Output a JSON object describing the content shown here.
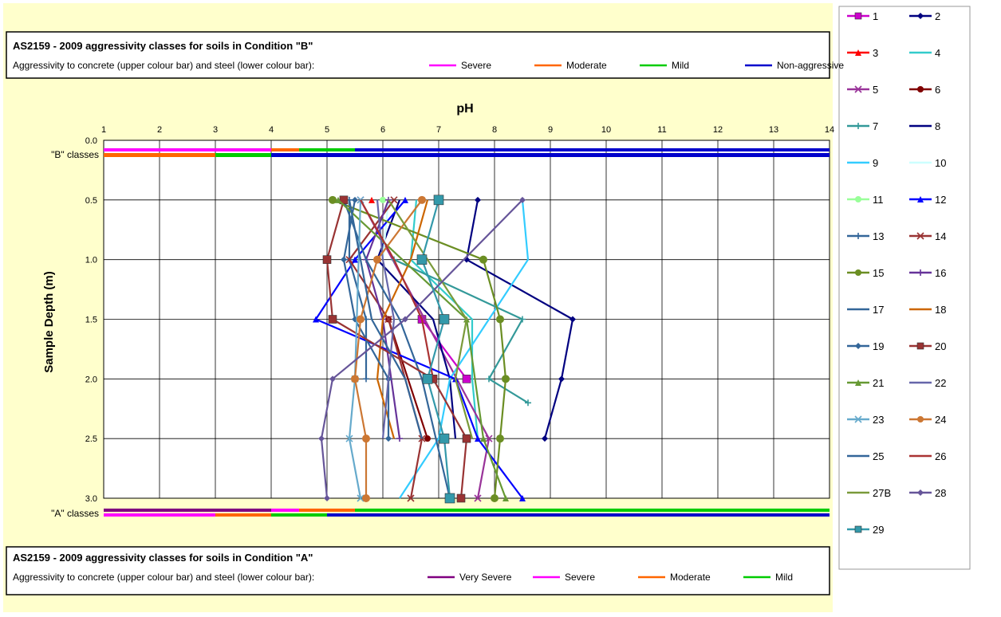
{
  "chart_data": {
    "type": "line",
    "title": "pH",
    "xlabel": "pH",
    "ylabel": "Sample Depth (m)",
    "xlim": [
      1,
      14
    ],
    "ylim": [
      0,
      3.0
    ],
    "x_ticks": [
      "1",
      "2",
      "3",
      "4",
      "5",
      "6",
      "7",
      "8",
      "9",
      "10",
      "11",
      "12",
      "13",
      "14"
    ],
    "y_ticks": [
      "0.0",
      "0.5",
      "1.0",
      "1.5",
      "2.0",
      "2.5",
      "3.0"
    ],
    "top_class_label": "\"B\" classes",
    "bottom_class_label": "\"A\" classes",
    "grid": true,
    "legend_position": "right",
    "box_b": {
      "title": "AS2159 - 2009 aggressivity classes for soils in Condition \"B\"",
      "subtitle": "Aggressivity to concrete (upper colour bar) and steel (lower colour bar):",
      "items": [
        {
          "label": "Severe",
          "color": "#ff00ff"
        },
        {
          "label": "Moderate",
          "color": "#ff6600"
        },
        {
          "label": "Mild",
          "color": "#00cc00"
        },
        {
          "label": "Non-aggressive",
          "color": "#0000cc"
        }
      ]
    },
    "box_a": {
      "title": "AS2159 - 2009 aggressivity classes for soils in Condition \"A\"",
      "subtitle": "Aggressivity to concrete (upper colour bar) and steel (lower colour bar):",
      "items": [
        {
          "label": "Very Severe",
          "color": "#800080"
        },
        {
          "label": "Severe",
          "color": "#ff00ff"
        },
        {
          "label": "Moderate",
          "color": "#ff6600"
        },
        {
          "label": "Mild",
          "color": "#00cc00"
        }
      ]
    },
    "class_bars": {
      "B_concrete": [
        {
          "from": 1,
          "to": 4,
          "color": "#ff00ff"
        },
        {
          "from": 4,
          "to": 4.5,
          "color": "#ff6600"
        },
        {
          "from": 4.5,
          "to": 5.5,
          "color": "#00cc00"
        },
        {
          "from": 5.5,
          "to": 14,
          "color": "#0000cc"
        }
      ],
      "B_steel": [
        {
          "from": 1,
          "to": 3,
          "color": "#ff6600"
        },
        {
          "from": 3,
          "to": 4,
          "color": "#00cc00"
        },
        {
          "from": 4,
          "to": 14,
          "color": "#0000cc"
        }
      ],
      "A_concrete": [
        {
          "from": 1,
          "to": 4,
          "color": "#800080"
        },
        {
          "from": 4,
          "to": 4.5,
          "color": "#ff00ff"
        },
        {
          "from": 4.5,
          "to": 5.5,
          "color": "#ff6600"
        },
        {
          "from": 5.5,
          "to": 14,
          "color": "#00cc00"
        }
      ],
      "A_steel": [
        {
          "from": 1,
          "to": 3,
          "color": "#ff00ff"
        },
        {
          "from": 3,
          "to": 4,
          "color": "#ff6600"
        },
        {
          "from": 4,
          "to": 5,
          "color": "#00cc00"
        },
        {
          "from": 5,
          "to": 14,
          "color": "#0000cc"
        }
      ]
    },
    "series": [
      {
        "name": "1",
        "color": "#cc00cc",
        "marker": "square",
        "size": 5,
        "points": [
          [
            6.7,
            1.5
          ],
          [
            7.5,
            2.0
          ]
        ]
      },
      {
        "name": "2",
        "color": "#000080",
        "marker": "diamond",
        "size": 4,
        "points": [
          [
            7.7,
            0.5
          ],
          [
            7.5,
            1.0
          ],
          [
            9.4,
            1.5
          ],
          [
            9.2,
            2.0
          ],
          [
            8.9,
            2.5
          ]
        ]
      },
      {
        "name": "3",
        "color": "#ff0000",
        "marker": "triangle",
        "size": 4,
        "points": [
          [
            5.8,
            0.5
          ]
        ]
      },
      {
        "name": "4",
        "color": "#33cccc",
        "marker": "none",
        "size": 3,
        "points": [
          [
            6.6,
            0.5
          ],
          [
            6.5,
            1.0
          ],
          [
            7.6,
            1.5
          ],
          [
            7.6,
            2.0
          ],
          [
            7.7,
            2.5
          ]
        ]
      },
      {
        "name": "5",
        "color": "#993399",
        "marker": "x",
        "size": 4,
        "points": [
          [
            5.6,
            0.5
          ],
          [
            7.9,
            2.5
          ],
          [
            7.7,
            3.0
          ]
        ]
      },
      {
        "name": "6",
        "color": "#800000",
        "marker": "circle",
        "size": 4,
        "points": [
          [
            6.1,
            1.5
          ],
          [
            6.8,
            2.5
          ]
        ]
      },
      {
        "name": "7",
        "color": "#339999",
        "marker": "plus",
        "size": 4,
        "points": [
          [
            6.2,
            1.0
          ],
          [
            8.5,
            1.5
          ],
          [
            7.9,
            2.0
          ],
          [
            8.6,
            2.2
          ]
        ]
      },
      {
        "name": "8",
        "color": "#000080",
        "marker": "none",
        "size": 3,
        "points": [
          [
            6.3,
            0.5
          ],
          [
            5.9,
            1.0
          ],
          [
            6.9,
            1.5
          ],
          [
            7.2,
            2.0
          ],
          [
            7.3,
            2.5
          ]
        ]
      },
      {
        "name": "9",
        "color": "#33ccff",
        "marker": "none",
        "size": 3,
        "points": [
          [
            8.5,
            0.5
          ],
          [
            8.6,
            1.0
          ],
          [
            7.9,
            1.5
          ],
          [
            7.2,
            2.0
          ],
          [
            7.0,
            2.5
          ],
          [
            6.3,
            3.0
          ]
        ]
      },
      {
        "name": "10",
        "color": "#ccffff",
        "marker": "none",
        "size": 3,
        "points": [
          [
            6.1,
            0.5
          ],
          [
            6.0,
            1.0
          ]
        ]
      },
      {
        "name": "11",
        "color": "#99ff99",
        "marker": "circle",
        "size": 4,
        "points": [
          [
            6.0,
            0.5
          ]
        ]
      },
      {
        "name": "12",
        "color": "#0000ff",
        "marker": "triangle",
        "size": 4,
        "points": [
          [
            6.4,
            0.5
          ],
          [
            5.5,
            1.0
          ],
          [
            4.8,
            1.5
          ],
          [
            7.3,
            2.0
          ],
          [
            7.7,
            2.5
          ],
          [
            8.5,
            3.0
          ]
        ]
      },
      {
        "name": "13",
        "color": "#336699",
        "marker": "plus",
        "size": 4,
        "points": [
          [
            5.4,
            0.5
          ],
          [
            5.4,
            1.0
          ],
          [
            5.7,
            1.5
          ],
          [
            5.7,
            2.0
          ]
        ]
      },
      {
        "name": "14",
        "color": "#993333",
        "marker": "x",
        "size": 4,
        "points": [
          [
            6.2,
            0.5
          ],
          [
            5.4,
            1.0
          ],
          [
            6.1,
            1.5
          ],
          [
            6.7,
            2.5
          ],
          [
            6.5,
            3.0
          ]
        ]
      },
      {
        "name": "15",
        "color": "#6b8e23",
        "marker": "circle",
        "size": 5,
        "points": [
          [
            5.1,
            0.5
          ],
          [
            7.8,
            1.0
          ],
          [
            8.1,
            1.5
          ],
          [
            8.2,
            2.0
          ],
          [
            8.1,
            2.5
          ],
          [
            8.0,
            3.0
          ]
        ]
      },
      {
        "name": "16",
        "color": "#663399",
        "marker": "plus",
        "size": 4,
        "points": [
          [
            6.1,
            0.5
          ],
          [
            5.7,
            1.0
          ],
          [
            6.0,
            1.5
          ],
          [
            6.3,
            2.5
          ]
        ]
      },
      {
        "name": "17",
        "color": "#336699",
        "marker": "none",
        "size": 3,
        "points": [
          [
            5.3,
            0.5
          ],
          [
            5.7,
            1.0
          ],
          [
            6.3,
            1.5
          ],
          [
            6.7,
            2.0
          ],
          [
            7.2,
            3.0
          ]
        ]
      },
      {
        "name": "18",
        "color": "#cc6600",
        "marker": "none",
        "size": 3,
        "points": [
          [
            6.8,
            0.5
          ],
          [
            6.5,
            1.0
          ],
          [
            6.0,
            1.5
          ],
          [
            5.9,
            2.0
          ],
          [
            6.2,
            2.5
          ]
        ]
      },
      {
        "name": "19",
        "color": "#336699",
        "marker": "diamond",
        "size": 4,
        "points": [
          [
            5.5,
            0.5
          ],
          [
            5.3,
            1.0
          ],
          [
            5.5,
            1.5
          ],
          [
            6.1,
            2.0
          ],
          [
            6.1,
            2.5
          ]
        ]
      },
      {
        "name": "20",
        "color": "#993333",
        "marker": "square",
        "size": 5,
        "points": [
          [
            5.3,
            0.5
          ],
          [
            5.0,
            1.0
          ],
          [
            5.1,
            1.5
          ],
          [
            6.9,
            2.0
          ],
          [
            7.5,
            2.5
          ],
          [
            7.4,
            3.0
          ]
        ]
      },
      {
        "name": "21",
        "color": "#669933",
        "marker": "triangle",
        "size": 4,
        "points": [
          [
            5.2,
            0.5
          ],
          [
            7.5,
            1.5
          ],
          [
            7.8,
            2.5
          ],
          [
            8.2,
            3.0
          ]
        ]
      },
      {
        "name": "22",
        "color": "#6666aa",
        "marker": "none",
        "size": 3,
        "points": [
          [
            5.9,
            0.5
          ],
          [
            6.0,
            1.0
          ],
          [
            6.2,
            1.5
          ],
          [
            6.1,
            2.0
          ],
          [
            6.0,
            2.5
          ]
        ]
      },
      {
        "name": "23",
        "color": "#66aacc",
        "marker": "x",
        "size": 4,
        "points": [
          [
            5.6,
            0.5
          ],
          [
            5.5,
            2.0
          ],
          [
            5.4,
            2.5
          ],
          [
            5.6,
            3.0
          ]
        ]
      },
      {
        "name": "24",
        "color": "#cc7733",
        "marker": "circle",
        "size": 5,
        "points": [
          [
            6.7,
            0.5
          ],
          [
            5.9,
            1.0
          ],
          [
            5.6,
            1.5
          ],
          [
            5.5,
            2.0
          ],
          [
            5.7,
            2.5
          ],
          [
            5.7,
            3.0
          ]
        ]
      },
      {
        "name": "25",
        "color": "#336699",
        "marker": "none",
        "size": 3,
        "points": [
          [
            5.4,
            0.5
          ],
          [
            5.8,
            1.5
          ],
          [
            6.4,
            2.0
          ],
          [
            6.7,
            2.5
          ]
        ]
      },
      {
        "name": "26",
        "color": "#aa3333",
        "marker": "none",
        "size": 3,
        "points": [
          [
            5.6,
            0.5
          ],
          [
            6.2,
            1.0
          ],
          [
            6.7,
            1.5
          ],
          [
            6.9,
            2.0
          ]
        ]
      },
      {
        "name": "27B",
        "color": "#7a9a3a",
        "marker": "none",
        "size": 3,
        "points": [
          [
            6.1,
            0.5
          ],
          [
            7.5,
            1.5
          ],
          [
            7.3,
            2.0
          ],
          [
            7.6,
            2.5
          ]
        ]
      },
      {
        "name": "28",
        "color": "#665599",
        "marker": "diamond",
        "size": 4,
        "points": [
          [
            8.5,
            0.5
          ],
          [
            6.4,
            1.5
          ],
          [
            5.1,
            2.0
          ],
          [
            4.9,
            2.5
          ],
          [
            5.0,
            3.0
          ]
        ]
      },
      {
        "name": "29",
        "color": "#3399aa",
        "marker": "square",
        "size": 6,
        "points": [
          [
            7.0,
            0.5
          ],
          [
            6.7,
            1.0
          ],
          [
            7.1,
            1.5
          ],
          [
            6.8,
            2.0
          ],
          [
            7.1,
            2.5
          ],
          [
            7.2,
            3.0
          ]
        ]
      }
    ]
  }
}
